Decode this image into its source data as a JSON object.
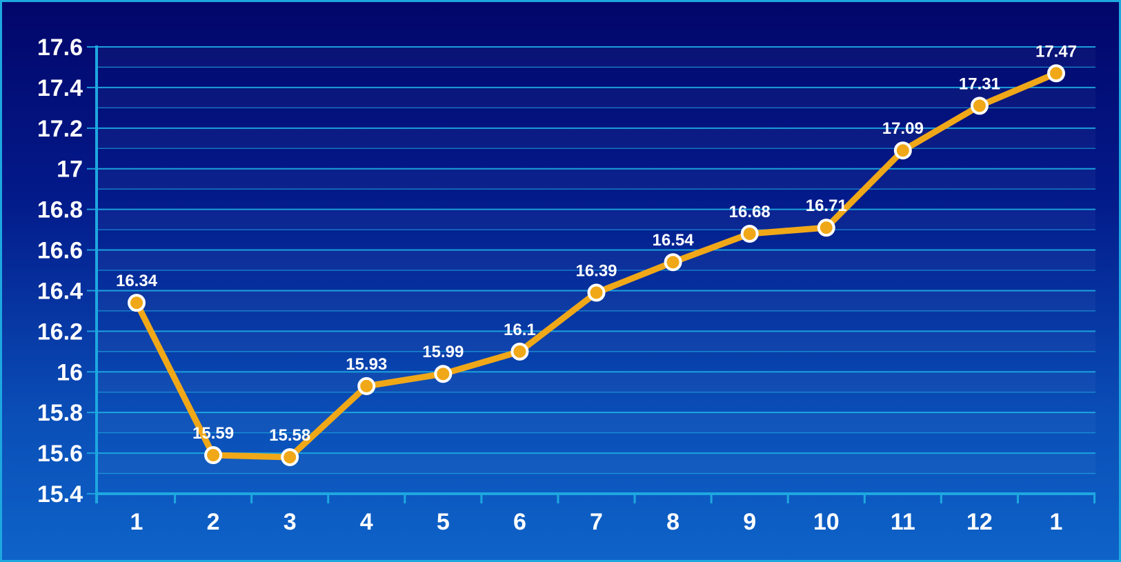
{
  "chart_data": {
    "type": "line",
    "categories": [
      "1",
      "2",
      "3",
      "4",
      "5",
      "6",
      "7",
      "8",
      "9",
      "10",
      "11",
      "12",
      "1"
    ],
    "series": [
      {
        "values": [
          16.34,
          15.59,
          15.58,
          15.93,
          15.99,
          16.1,
          16.39,
          16.54,
          16.68,
          16.71,
          17.09,
          17.31,
          17.47
        ],
        "labels": [
          "16.34",
          "15.59",
          "15.58",
          "15.93",
          "15.99",
          "16.1",
          "16.39",
          "16.54",
          "16.68",
          "16.71",
          "17.09",
          "17.31",
          "17.47"
        ]
      }
    ],
    "y_ticks": [
      "15.4",
      "15.6",
      "15.8",
      "16",
      "16.2",
      "16.4",
      "16.6",
      "16.8",
      "17",
      "17.2",
      "17.4",
      "17.6"
    ],
    "ylim": [
      15.4,
      17.6
    ],
    "y_step": 0.2,
    "grid": true,
    "legend": "none",
    "colors": {
      "line": "#f0a818",
      "marker_fill": "#f0a818",
      "marker_stroke": "#ffffff",
      "grid": "#1ea8e0",
      "axis": "#1ea8e0",
      "text": "#ffffff"
    }
  }
}
